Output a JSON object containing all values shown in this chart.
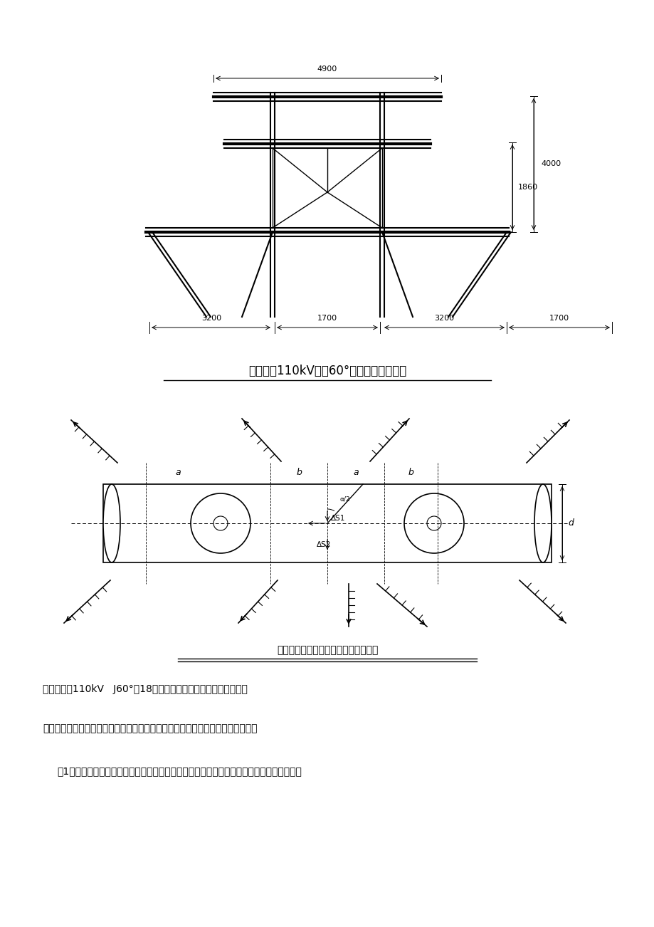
{
  "page_bg": "#ffffff",
  "line_color": "#000000",
  "dim_color": "#000000",
  "title1": "图（一）110kV转角60°砼电杆杆型示意图",
  "title2": "（图二）有位移转角杆位移计算示意图",
  "text1": "以上图示为110kV   J60°－18型砼电杆杆型示意图和横担示意图。",
  "text2": "其位移由两部分组成，一是横担宽度引起的，另外一个是由于横担不等长引起的。",
  "text3": "（1）、由于转角杆横担宽度的影响，使转角杆中心位置与原转角桩产生位移，其位移距离为",
  "dim_4900": "4900",
  "dim_4000": "4000",
  "dim_1860": "1860",
  "dim_3200a": "3200",
  "dim_1700a": "1700",
  "dim_3200b": "3200",
  "dim_1700b": "1700"
}
